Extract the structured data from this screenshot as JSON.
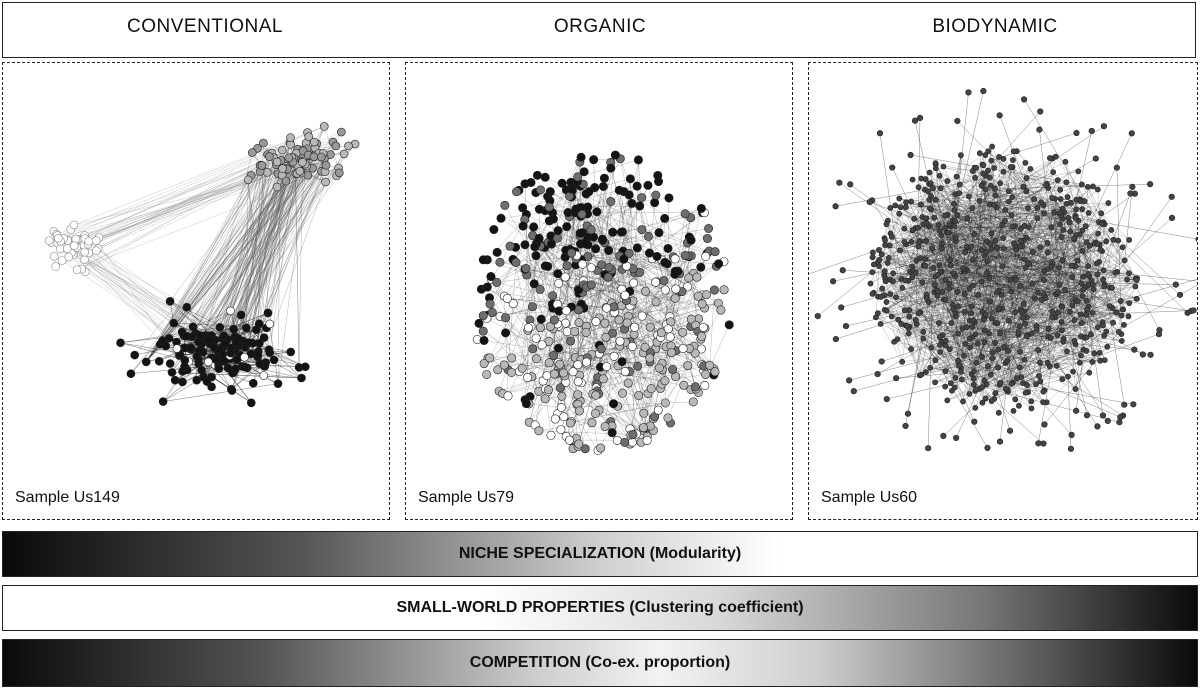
{
  "header": {
    "columns": [
      "CONVENTIONAL",
      "ORGANIC",
      "BIODYNAMIC"
    ]
  },
  "panels": [
    {
      "sample_label": "Sample Us149"
    },
    {
      "sample_label": "Sample Us79"
    },
    {
      "sample_label": "Sample Us60"
    }
  ],
  "bars": [
    {
      "label": "NICHE SPECIALIZATION (Modularity)",
      "gradient": "dark-to-light"
    },
    {
      "label": "SMALL-WORLD PROPERTIES (Clustering coefficient)",
      "gradient": "light-to-dark"
    },
    {
      "label": "COMPETITION (Co-ex. proportion)",
      "gradient": "dark-light-dark"
    }
  ],
  "colors": {
    "ink": "#111111",
    "node_dark": "#141414",
    "node_mid": "#6e6e6e",
    "node_light": "#b8b8b8",
    "node_white": "#ffffff"
  }
}
